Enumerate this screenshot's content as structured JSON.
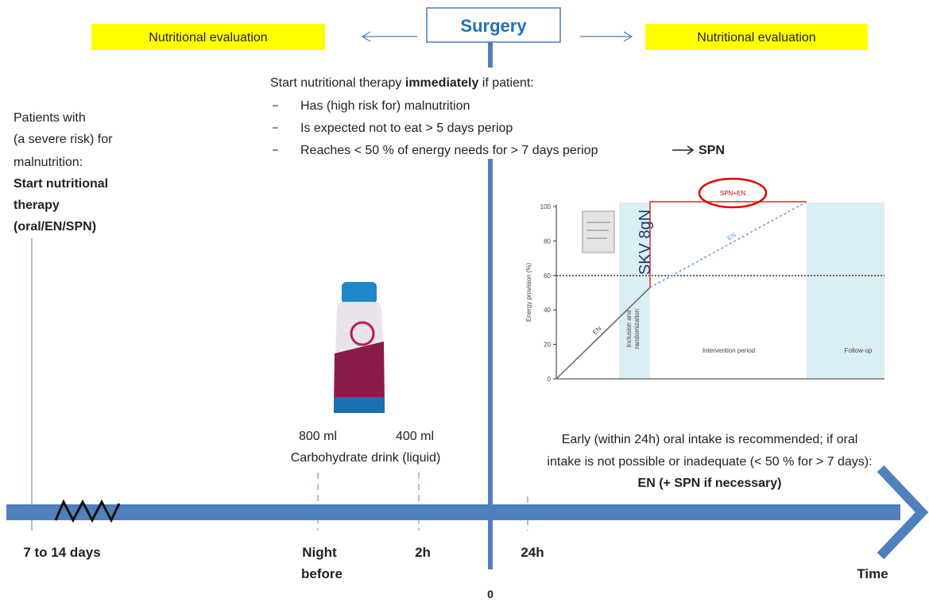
{
  "header": {
    "center": "Surgery",
    "left_box": "Nutritional evaluation",
    "right_box": "Nutritional evaluation"
  },
  "criteria": {
    "intro_pre": "Start nutritional therapy ",
    "intro_bold": "immediately",
    "intro_post": " if patient:",
    "items": [
      "Has (high risk for) malnutrition",
      "Is expected not to eat > 5 days periop",
      "Reaches < 50 % of energy needs for > 7 days periop"
    ],
    "arrow_target": "SPN"
  },
  "left_note": {
    "lines": [
      "Patients with",
      "(a severe risk) for",
      "malnutrition:"
    ],
    "bold_lines": [
      "Start nutritional",
      "therapy",
      "(oral/EN/SPN)"
    ]
  },
  "drink": {
    "volumes": [
      "800 ml",
      "400 ml"
    ],
    "label": "Carbohydrate drink (liquid)"
  },
  "postop_note": {
    "lines": [
      "Early (within 24h) oral intake is recommended; if oral",
      "intake is not possible  or inadequate (< 50 % for > 7 days):"
    ],
    "bold": "EN (+ SPN if necessary)"
  },
  "timeline": {
    "start": "7 to 14 days",
    "night": [
      "Night",
      "before"
    ],
    "two_hours": "2h",
    "zero": "0",
    "day_one": "24h",
    "end": "Time"
  },
  "inset": {
    "y_axis_label": "Energy provision (%)",
    "yticks": [
      0,
      20,
      40,
      60,
      80,
      100
    ],
    "spn_en": "SPN+EN",
    "en_upper": "EN",
    "en_lower": "EN",
    "skv": "SKV 8gN",
    "inclusion": [
      "Inclusion and",
      "randomization"
    ],
    "intervention": "Intervention period",
    "followup": "Follow-up"
  }
}
